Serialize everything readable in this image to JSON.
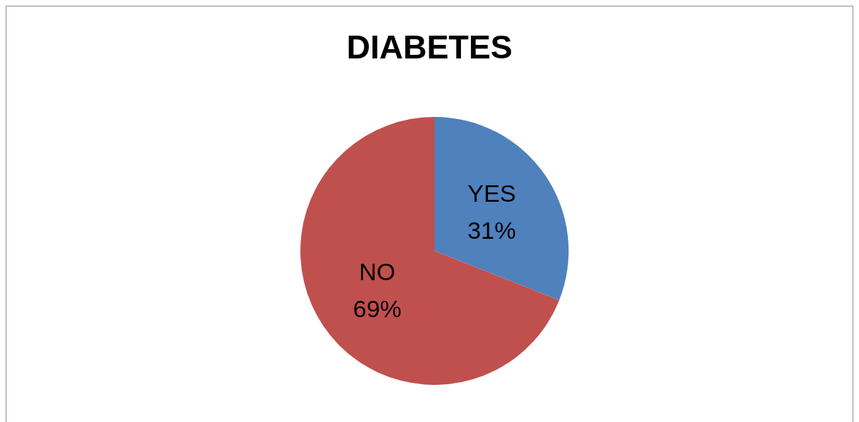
{
  "chart_data": {
    "type": "pie",
    "title": "DIABETES",
    "categories": [
      "YES",
      "NO"
    ],
    "values": [
      31,
      69
    ],
    "value_labels": [
      "31%",
      "69%"
    ],
    "colors": [
      "#4f81bd",
      "#c0504d"
    ],
    "legend": false
  }
}
